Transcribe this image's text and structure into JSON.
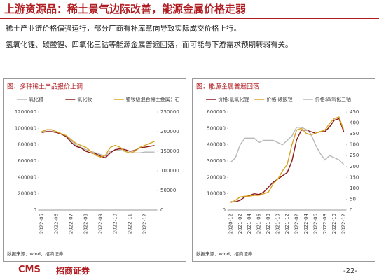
{
  "header": {
    "title": "上游资源品：稀土景气边际改善，能源金属价格走弱"
  },
  "bullets": [
    "稀土产业链价格偏强运行，部分厂商有补库意向导致实际成交价格上行。",
    "氢氧化锂、碳酸锂、四氧化三钴等能源金属普遍回落，而可能与下游需求预期转弱有关。"
  ],
  "footer": {
    "logo": "CMS",
    "brand": "招商证券",
    "page": "-22-"
  },
  "chart_data": [
    {
      "type": "line",
      "title": "图：多种稀土产品报价上调",
      "source": "数据来源：wind，招商证券",
      "categories": [
        "2022-05",
        null,
        null,
        "2022-06",
        null,
        null,
        "2022-07",
        null,
        null,
        "2022-08",
        null,
        null,
        "2022-09",
        null,
        null,
        "2022-10",
        null,
        null,
        "2022-11",
        null,
        null,
        "2022-12",
        null,
        null
      ],
      "series": [
        {
          "name": "氧化镨",
          "color": "#b8b8b8",
          "values": [
            960000,
            980000,
            980000,
            960000,
            930000,
            900000,
            850000,
            800000,
            770000,
            740000,
            720000,
            700000,
            680000,
            660000,
            720000,
            730000,
            730000,
            720000,
            700000,
            700000,
            700000,
            710000,
            710000,
            710000
          ]
        },
        {
          "name": "氧化钕",
          "color": "#8b1a1a",
          "values": [
            950000,
            960000,
            960000,
            950000,
            930000,
            900000,
            830000,
            780000,
            760000,
            720000,
            700000,
            690000,
            660000,
            640000,
            700000,
            740000,
            750000,
            740000,
            720000,
            730000,
            760000,
            770000,
            780000,
            790000
          ]
        },
        {
          "name": "镨钕级混合稀土金属：右",
          "color": "#d9a520",
          "axis": "y2",
          "values": [
            200000,
            205000,
            205000,
            200000,
            195000,
            190000,
            180000,
            170000,
            165000,
            160000,
            150000,
            140000,
            135000,
            140000,
            160000,
            165000,
            160000,
            150000,
            145000,
            150000,
            160000,
            165000,
            170000,
            175000
          ]
        }
      ],
      "ylim": [
        0,
        1200000
      ],
      "yticks": [
        0,
        200000,
        400000,
        600000,
        800000,
        1000000,
        1200000
      ],
      "y2lim": [
        0,
        250000
      ],
      "y2ticks": [
        0,
        50000,
        100000,
        150000,
        200000,
        250000
      ]
    },
    {
      "type": "line",
      "title": "图：能源金属普遍回落",
      "source": "数据来源：wind，招商证券",
      "categories": [
        "2020-12",
        null,
        "2021-02",
        null,
        "2021-04",
        null,
        "2021-06",
        null,
        "2021-08",
        null,
        "2021-10",
        null,
        "2021-12",
        null,
        "2022-02",
        null,
        "2022-04",
        null,
        "2022-06",
        null,
        "2022-08",
        null,
        "2022-10",
        null,
        "2022-12"
      ],
      "series": [
        {
          "name": "价格:氢氧化锂",
          "color": "#8b1a1a",
          "values": [
            50000,
            50000,
            60000,
            80000,
            90000,
            100000,
            95000,
            110000,
            140000,
            170000,
            190000,
            210000,
            230000,
            300000,
            430000,
            490000,
            490000,
            480000,
            470000,
            480000,
            480000,
            510000,
            550000,
            560000,
            480000
          ]
        },
        {
          "name": "价格:碳酸锂",
          "color": "#d9a520",
          "values": [
            45000,
            60000,
            80000,
            85000,
            85000,
            90000,
            90000,
            100000,
            110000,
            160000,
            190000,
            240000,
            280000,
            400000,
            490000,
            500000,
            470000,
            460000,
            470000,
            480000,
            490000,
            530000,
            560000,
            570000,
            490000
          ]
        },
        {
          "name": "价格:四氧化三钴",
          "color": "#b8b8b8",
          "axis": "y2",
          "values": [
            220,
            240,
            300,
            330,
            330,
            330,
            310,
            320,
            320,
            320,
            310,
            300,
            320,
            340,
            380,
            380,
            370,
            350,
            300,
            260,
            230,
            250,
            240,
            230,
            210
          ]
        }
      ],
      "ylim": [
        0,
        600000
      ],
      "yticks": [
        0,
        100000,
        200000,
        300000,
        400000,
        500000,
        600000
      ],
      "y2lim": [
        0,
        450
      ],
      "y2ticks": [
        0,
        50,
        100,
        150,
        200,
        250,
        300,
        350,
        400,
        450
      ]
    }
  ]
}
